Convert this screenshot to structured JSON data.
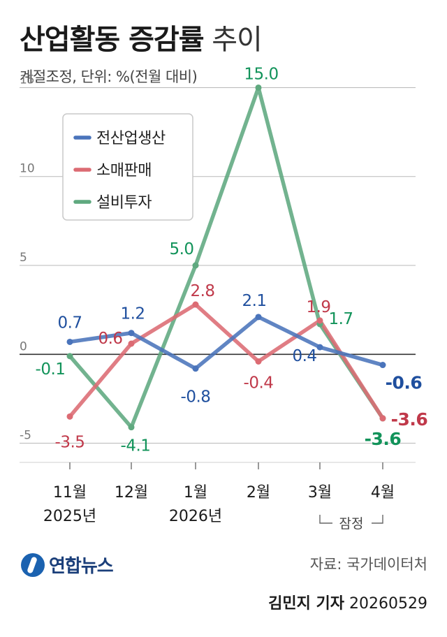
{
  "title": {
    "bold": "산업활동 증감률",
    "light": "추이"
  },
  "subtitle": "계절조정, 단위: %(전월 대비)",
  "chart_data": {
    "type": "line",
    "categories": [
      "11월",
      "12월",
      "1월",
      "2월",
      "3월",
      "4월"
    ],
    "category_years": [
      "2025년",
      "",
      "2026년",
      "",
      "",
      ""
    ],
    "provisional_label": "잠정",
    "ylim": [
      -6,
      16
    ],
    "yticks": [
      -5,
      0,
      5,
      10,
      15
    ],
    "ytick_labels": [
      "-5",
      "0",
      "5",
      "10",
      "15"
    ],
    "grid": true,
    "legend": "top-left",
    "series": [
      {
        "name": "전산업생산",
        "color": "#4a74bb",
        "label_color": "#1f4f9e",
        "values": [
          0.7,
          1.2,
          -0.8,
          2.1,
          0.4,
          -0.6
        ],
        "labels": [
          "0.7",
          "1.2",
          "-0.8",
          "2.1",
          "0.4",
          "-0.6"
        ]
      },
      {
        "name": "소매판매",
        "color": "#dc6b73",
        "label_color": "#c0394a",
        "values": [
          -3.5,
          0.6,
          2.8,
          -0.4,
          1.9,
          -3.6
        ],
        "labels": [
          "-3.5",
          "0.6",
          "2.8",
          "-0.4",
          "1.9",
          "-3.6"
        ]
      },
      {
        "name": "설비투자",
        "color": "#5fa97f",
        "label_color": "#12935a",
        "values": [
          -0.1,
          -4.1,
          5.0,
          15.0,
          1.7,
          -3.6
        ],
        "labels": [
          "-0.1",
          "-4.1",
          "5.0",
          "15.0",
          "1.7",
          "-3.6"
        ]
      }
    ]
  },
  "footer": {
    "logo": "연합뉴스",
    "source": "자료: 국가데이터처",
    "reporter": "김민지 기자",
    "date": "20260529"
  }
}
